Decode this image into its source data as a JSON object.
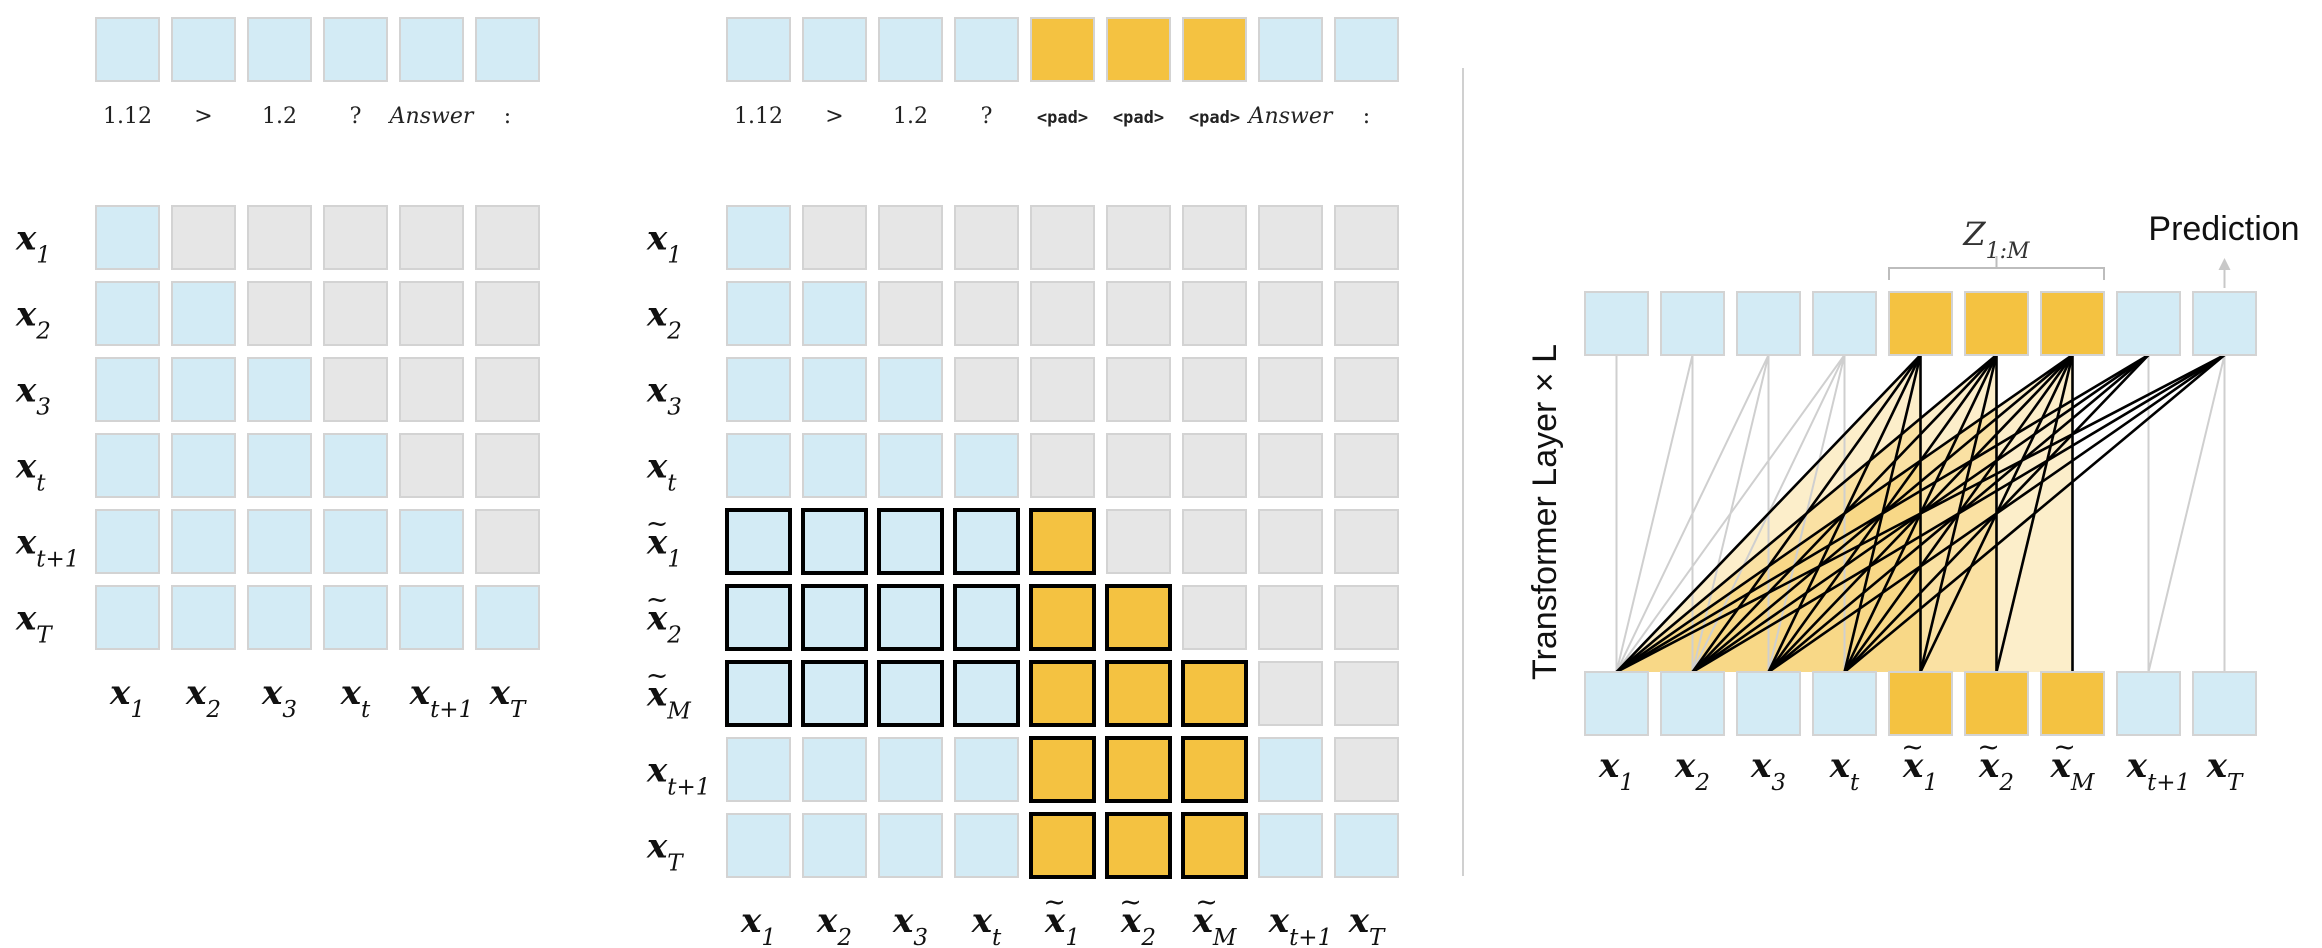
{
  "colors": {
    "blue": "#D3EBF5",
    "gold": "#F4C241",
    "gray": "#E6E6E6",
    "cell_border": "#D3D3D3",
    "bold_border": "#000000",
    "edge_gray": "#CFCFCF",
    "edge_black": "#000000",
    "fan_fill": "#F4C241"
  },
  "left_panel": {
    "input_tokens": [
      "1.12",
      ">",
      "1.2",
      "?",
      "Answer",
      ":"
    ],
    "input_colors": [
      "blue",
      "blue",
      "blue",
      "blue",
      "blue",
      "blue"
    ],
    "row_labels": [
      {
        "base": "x",
        "sub": "1",
        "tilde": false
      },
      {
        "base": "x",
        "sub": "2",
        "tilde": false
      },
      {
        "base": "x",
        "sub": "3",
        "tilde": false
      },
      {
        "base": "x",
        "sub": "t",
        "tilde": false
      },
      {
        "base": "x",
        "sub": "t+1",
        "tilde": false
      },
      {
        "base": "x",
        "sub": "T",
        "tilde": false
      }
    ],
    "col_labels": [
      {
        "base": "x",
        "sub": "1",
        "tilde": false
      },
      {
        "base": "x",
        "sub": "2",
        "tilde": false
      },
      {
        "base": "x",
        "sub": "3",
        "tilde": false
      },
      {
        "base": "x",
        "sub": "t",
        "tilde": false
      },
      {
        "base": "x",
        "sub": "t+1",
        "tilde": false
      },
      {
        "base": "x",
        "sub": "T",
        "tilde": false
      }
    ],
    "matrix": [
      "b.....",
      "bb....",
      "bbb...",
      "bbbb..",
      "bbbbb.",
      "bbbbbb"
    ]
  },
  "middle_panel": {
    "input_tokens": [
      "1.12",
      ">",
      "1.2",
      "?",
      "<pad>",
      "<pad>",
      "<pad>",
      "Answer",
      ":"
    ],
    "input_colors": [
      "blue",
      "blue",
      "blue",
      "blue",
      "gold",
      "gold",
      "gold",
      "blue",
      "blue"
    ],
    "row_labels": [
      {
        "base": "x",
        "sub": "1",
        "tilde": false
      },
      {
        "base": "x",
        "sub": "2",
        "tilde": false
      },
      {
        "base": "x",
        "sub": "3",
        "tilde": false
      },
      {
        "base": "x",
        "sub": "t",
        "tilde": false
      },
      {
        "base": "x",
        "sub": "1",
        "tilde": true
      },
      {
        "base": "x",
        "sub": "2",
        "tilde": true
      },
      {
        "base": "x",
        "sub": "M",
        "tilde": true
      },
      {
        "base": "x",
        "sub": "t+1",
        "tilde": false
      },
      {
        "base": "x",
        "sub": "T",
        "tilde": false
      }
    ],
    "col_labels": [
      {
        "base": "x",
        "sub": "1",
        "tilde": false
      },
      {
        "base": "x",
        "sub": "2",
        "tilde": false
      },
      {
        "base": "x",
        "sub": "3",
        "tilde": false
      },
      {
        "base": "x",
        "sub": "t",
        "tilde": false
      },
      {
        "base": "x",
        "sub": "1",
        "tilde": true
      },
      {
        "base": "x",
        "sub": "2",
        "tilde": true
      },
      {
        "base": "x",
        "sub": "M",
        "tilde": true
      },
      {
        "base": "x",
        "sub": "t+1",
        "tilde": false
      },
      {
        "base": "x",
        "sub": "T",
        "tilde": false
      }
    ],
    "matrix": [
      "b........",
      "bb.......",
      "bbb......",
      "bbbb.....",
      "BBBBG....",
      "BBBBGG...",
      "BBBBGGG..",
      "bbbbGGGb.",
      "bbbbGGGbb"
    ]
  },
  "right_panel": {
    "z_label": {
      "base": "Z",
      "sub": "1:M"
    },
    "prediction_label": "Prediction",
    "layer_label": "Transformer Layer × L",
    "token_colors": [
      "blue",
      "blue",
      "blue",
      "blue",
      "gold",
      "gold",
      "gold",
      "blue",
      "blue"
    ],
    "col_labels": [
      {
        "base": "x",
        "sub": "1",
        "tilde": false
      },
      {
        "base": "x",
        "sub": "2",
        "tilde": false
      },
      {
        "base": "x",
        "sub": "3",
        "tilde": false
      },
      {
        "base": "x",
        "sub": "t",
        "tilde": false
      },
      {
        "base": "x",
        "sub": "1",
        "tilde": true
      },
      {
        "base": "x",
        "sub": "2",
        "tilde": true
      },
      {
        "base": "x",
        "sub": "M",
        "tilde": true
      },
      {
        "base": "x",
        "sub": "t+1",
        "tilde": false
      },
      {
        "base": "x",
        "sub": "T",
        "tilde": false
      }
    ]
  }
}
